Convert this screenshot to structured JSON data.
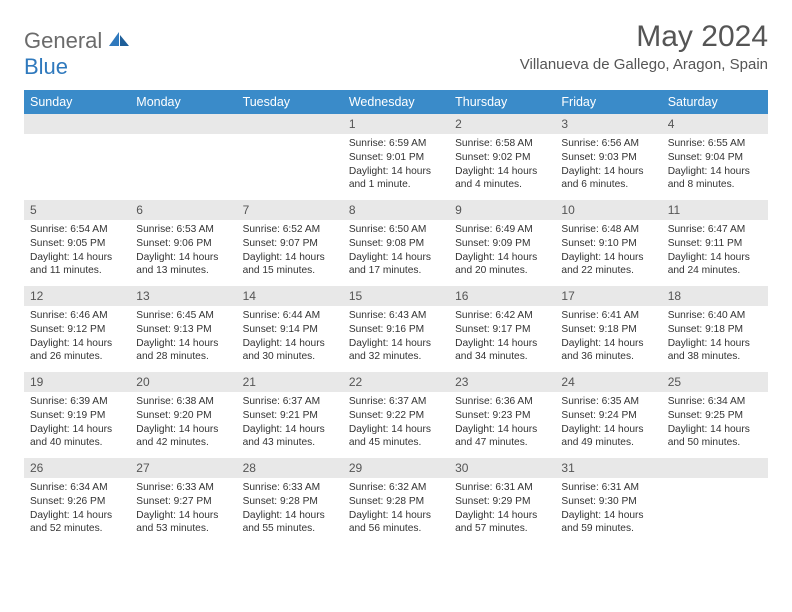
{
  "brand": {
    "part1": "General",
    "part2": "Blue"
  },
  "title": "May 2024",
  "location": "Villanueva de Gallego, Aragon, Spain",
  "colors": {
    "header_bg": "#3a8bc9",
    "header_text": "#ffffff",
    "daynum_bg": "#e8e8e8",
    "text": "#333333",
    "brand_gray": "#6b6b6b",
    "brand_blue": "#2f79bd"
  },
  "weekdays": [
    "Sunday",
    "Monday",
    "Tuesday",
    "Wednesday",
    "Thursday",
    "Friday",
    "Saturday"
  ],
  "weeks": [
    [
      {
        "empty": true
      },
      {
        "empty": true
      },
      {
        "empty": true
      },
      {
        "day": "1",
        "sunrise": "Sunrise: 6:59 AM",
        "sunset": "Sunset: 9:01 PM",
        "daylight": "Daylight: 14 hours and 1 minute."
      },
      {
        "day": "2",
        "sunrise": "Sunrise: 6:58 AM",
        "sunset": "Sunset: 9:02 PM",
        "daylight": "Daylight: 14 hours and 4 minutes."
      },
      {
        "day": "3",
        "sunrise": "Sunrise: 6:56 AM",
        "sunset": "Sunset: 9:03 PM",
        "daylight": "Daylight: 14 hours and 6 minutes."
      },
      {
        "day": "4",
        "sunrise": "Sunrise: 6:55 AM",
        "sunset": "Sunset: 9:04 PM",
        "daylight": "Daylight: 14 hours and 8 minutes."
      }
    ],
    [
      {
        "day": "5",
        "sunrise": "Sunrise: 6:54 AM",
        "sunset": "Sunset: 9:05 PM",
        "daylight": "Daylight: 14 hours and 11 minutes."
      },
      {
        "day": "6",
        "sunrise": "Sunrise: 6:53 AM",
        "sunset": "Sunset: 9:06 PM",
        "daylight": "Daylight: 14 hours and 13 minutes."
      },
      {
        "day": "7",
        "sunrise": "Sunrise: 6:52 AM",
        "sunset": "Sunset: 9:07 PM",
        "daylight": "Daylight: 14 hours and 15 minutes."
      },
      {
        "day": "8",
        "sunrise": "Sunrise: 6:50 AM",
        "sunset": "Sunset: 9:08 PM",
        "daylight": "Daylight: 14 hours and 17 minutes."
      },
      {
        "day": "9",
        "sunrise": "Sunrise: 6:49 AM",
        "sunset": "Sunset: 9:09 PM",
        "daylight": "Daylight: 14 hours and 20 minutes."
      },
      {
        "day": "10",
        "sunrise": "Sunrise: 6:48 AM",
        "sunset": "Sunset: 9:10 PM",
        "daylight": "Daylight: 14 hours and 22 minutes."
      },
      {
        "day": "11",
        "sunrise": "Sunrise: 6:47 AM",
        "sunset": "Sunset: 9:11 PM",
        "daylight": "Daylight: 14 hours and 24 minutes."
      }
    ],
    [
      {
        "day": "12",
        "sunrise": "Sunrise: 6:46 AM",
        "sunset": "Sunset: 9:12 PM",
        "daylight": "Daylight: 14 hours and 26 minutes."
      },
      {
        "day": "13",
        "sunrise": "Sunrise: 6:45 AM",
        "sunset": "Sunset: 9:13 PM",
        "daylight": "Daylight: 14 hours and 28 minutes."
      },
      {
        "day": "14",
        "sunrise": "Sunrise: 6:44 AM",
        "sunset": "Sunset: 9:14 PM",
        "daylight": "Daylight: 14 hours and 30 minutes."
      },
      {
        "day": "15",
        "sunrise": "Sunrise: 6:43 AM",
        "sunset": "Sunset: 9:16 PM",
        "daylight": "Daylight: 14 hours and 32 minutes."
      },
      {
        "day": "16",
        "sunrise": "Sunrise: 6:42 AM",
        "sunset": "Sunset: 9:17 PM",
        "daylight": "Daylight: 14 hours and 34 minutes."
      },
      {
        "day": "17",
        "sunrise": "Sunrise: 6:41 AM",
        "sunset": "Sunset: 9:18 PM",
        "daylight": "Daylight: 14 hours and 36 minutes."
      },
      {
        "day": "18",
        "sunrise": "Sunrise: 6:40 AM",
        "sunset": "Sunset: 9:18 PM",
        "daylight": "Daylight: 14 hours and 38 minutes."
      }
    ],
    [
      {
        "day": "19",
        "sunrise": "Sunrise: 6:39 AM",
        "sunset": "Sunset: 9:19 PM",
        "daylight": "Daylight: 14 hours and 40 minutes."
      },
      {
        "day": "20",
        "sunrise": "Sunrise: 6:38 AM",
        "sunset": "Sunset: 9:20 PM",
        "daylight": "Daylight: 14 hours and 42 minutes."
      },
      {
        "day": "21",
        "sunrise": "Sunrise: 6:37 AM",
        "sunset": "Sunset: 9:21 PM",
        "daylight": "Daylight: 14 hours and 43 minutes."
      },
      {
        "day": "22",
        "sunrise": "Sunrise: 6:37 AM",
        "sunset": "Sunset: 9:22 PM",
        "daylight": "Daylight: 14 hours and 45 minutes."
      },
      {
        "day": "23",
        "sunrise": "Sunrise: 6:36 AM",
        "sunset": "Sunset: 9:23 PM",
        "daylight": "Daylight: 14 hours and 47 minutes."
      },
      {
        "day": "24",
        "sunrise": "Sunrise: 6:35 AM",
        "sunset": "Sunset: 9:24 PM",
        "daylight": "Daylight: 14 hours and 49 minutes."
      },
      {
        "day": "25",
        "sunrise": "Sunrise: 6:34 AM",
        "sunset": "Sunset: 9:25 PM",
        "daylight": "Daylight: 14 hours and 50 minutes."
      }
    ],
    [
      {
        "day": "26",
        "sunrise": "Sunrise: 6:34 AM",
        "sunset": "Sunset: 9:26 PM",
        "daylight": "Daylight: 14 hours and 52 minutes."
      },
      {
        "day": "27",
        "sunrise": "Sunrise: 6:33 AM",
        "sunset": "Sunset: 9:27 PM",
        "daylight": "Daylight: 14 hours and 53 minutes."
      },
      {
        "day": "28",
        "sunrise": "Sunrise: 6:33 AM",
        "sunset": "Sunset: 9:28 PM",
        "daylight": "Daylight: 14 hours and 55 minutes."
      },
      {
        "day": "29",
        "sunrise": "Sunrise: 6:32 AM",
        "sunset": "Sunset: 9:28 PM",
        "daylight": "Daylight: 14 hours and 56 minutes."
      },
      {
        "day": "30",
        "sunrise": "Sunrise: 6:31 AM",
        "sunset": "Sunset: 9:29 PM",
        "daylight": "Daylight: 14 hours and 57 minutes."
      },
      {
        "day": "31",
        "sunrise": "Sunrise: 6:31 AM",
        "sunset": "Sunset: 9:30 PM",
        "daylight": "Daylight: 14 hours and 59 minutes."
      },
      {
        "empty": true
      }
    ]
  ]
}
